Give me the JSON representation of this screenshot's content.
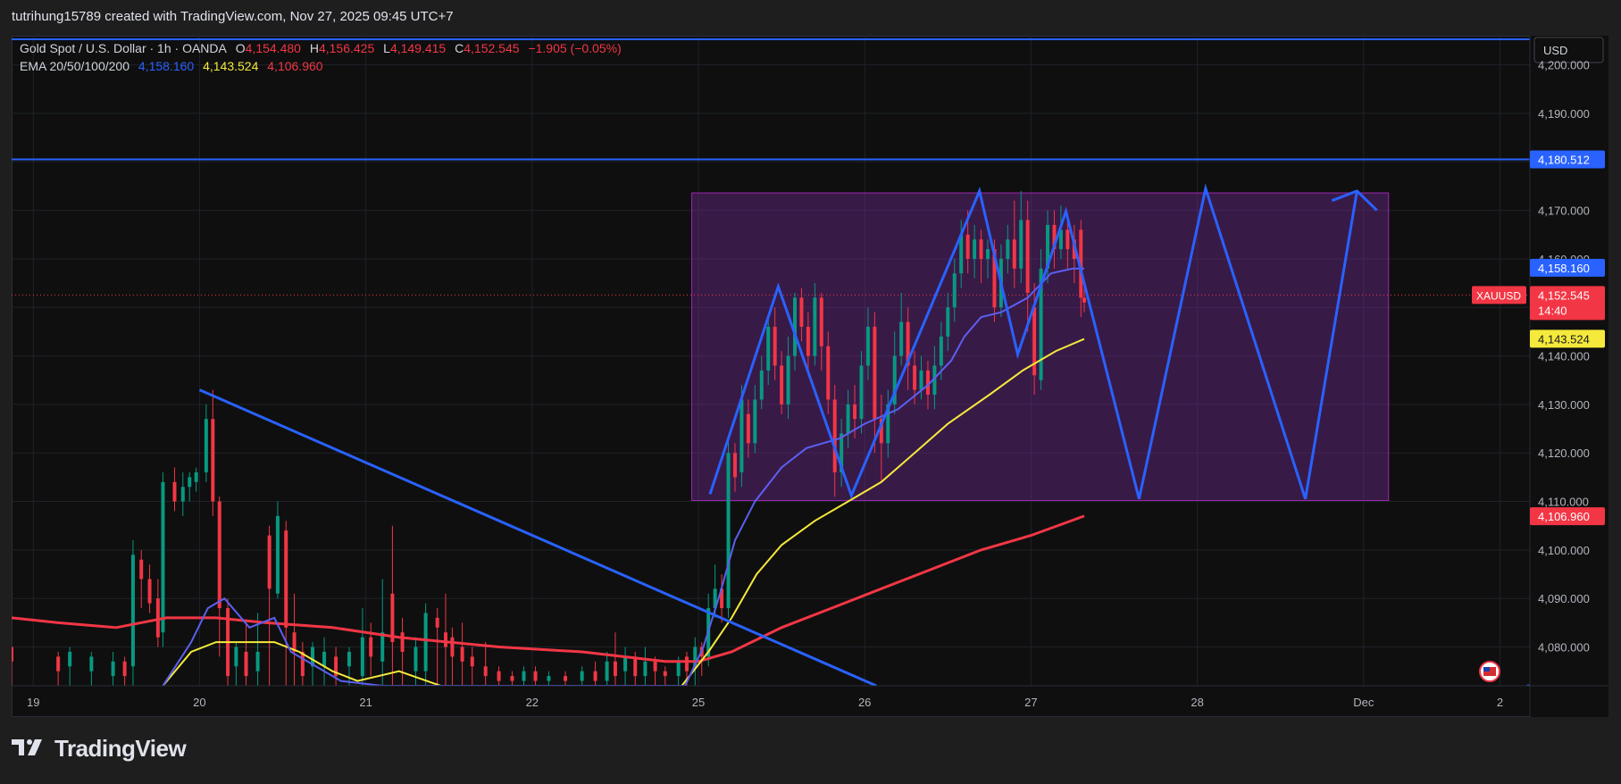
{
  "header": {
    "credit": "tutrihung15789 created with TradingView.com, Nov 27, 2025 09:45 UTC+7"
  },
  "legend": {
    "symbol": "Gold Spot / U.S. Dollar · 1h · OANDA",
    "o_label": "O",
    "o": "4,154.480",
    "h_label": "H",
    "h": "4,156.425",
    "l_label": "L",
    "l": "4,149.415",
    "c_label": "C",
    "c": "4,152.545",
    "change": "−1.905 (−0.05%)",
    "ema_label": "EMA 20/50/100/200",
    "ema20": "4,158.160",
    "ema50": "4,143.524",
    "ema100": "4,106.960"
  },
  "currency": "USD",
  "price_tag": {
    "symbol": "XAUUSD",
    "price": "4,152.545",
    "countdown": "14:40"
  },
  "level_tags": {
    "resistance": "4,180.512",
    "ema20": "4,158.160",
    "ema50": "4,143.524",
    "ema_red": "4,106.960"
  },
  "colors": {
    "background": "#0f0f0f",
    "up": "#089981",
    "down": "#f23645",
    "ema_blue": "#5b5ff0",
    "ema_yellow": "#f5e93b",
    "ema_red": "#f23645",
    "drawing": "#2962ff",
    "range_box": "#7b2ea3"
  },
  "brand": "TradingView",
  "chart_data": {
    "type": "candlestick",
    "timeframe": "1h",
    "y_ticks": [
      "4,200.000",
      "4,190.000",
      "4,180.000",
      "4,170.000",
      "4,160.000",
      "4,150.000",
      "4,140.000",
      "4,130.000",
      "4,120.000",
      "4,110.000",
      "4,100.000",
      "4,090.000",
      "4,080.000"
    ],
    "y_tick_values": [
      4200,
      4190,
      4180,
      4170,
      4160,
      4150,
      4140,
      4130,
      4120,
      4110,
      4100,
      4090,
      4080
    ],
    "ylim": [
      4072,
      4206
    ],
    "x_ticks": [
      "19",
      "20",
      "21",
      "22",
      "25",
      "26",
      "27",
      "28",
      "Dec",
      "2"
    ],
    "x_tick_days": [
      0,
      1,
      2,
      3,
      4,
      5,
      6,
      7,
      8,
      8.82
    ],
    "xlim": [
      -0.13,
      9.0
    ],
    "resistance_level": 4180.512,
    "range_box": {
      "x0": 3.96,
      "x1": 8.15,
      "y0": 4110.2,
      "y1": 4173.6
    },
    "zigzag_projection": [
      [
        4.07,
        4111.5
      ],
      [
        4.48,
        4154.3
      ],
      [
        4.92,
        4111.2
      ],
      [
        5.69,
        4174.0
      ],
      [
        5.92,
        4140.3
      ],
      [
        6.21,
        4169.8
      ],
      [
        6.65,
        4110.5
      ],
      [
        7.05,
        4174.5
      ],
      [
        7.65,
        4110.5
      ],
      [
        7.96,
        4174.0
      ]
    ],
    "arrow_head": [
      [
        7.81,
        4172.0
      ],
      [
        7.96,
        4174.0
      ],
      [
        8.08,
        4170.0
      ]
    ],
    "trendline": [
      [
        1.0,
        4133.0
      ],
      [
        5.07,
        4072.0
      ]
    ],
    "trendline_right": [
      [
        8.98,
        4072.0
      ],
      [
        9.25,
        4073.5
      ]
    ],
    "ema_blue": [
      [
        0.78,
        4072
      ],
      [
        0.95,
        4081
      ],
      [
        1.05,
        4088
      ],
      [
        1.15,
        4090
      ],
      [
        1.3,
        4084
      ],
      [
        1.45,
        4086
      ],
      [
        1.55,
        4079
      ],
      [
        1.7,
        4076
      ],
      [
        1.85,
        4073
      ],
      [
        2.1,
        4072
      ],
      [
        2.5,
        4072
      ],
      [
        3.7,
        4072
      ],
      [
        3.92,
        4072
      ],
      [
        4.03,
        4080
      ],
      [
        4.13,
        4091
      ],
      [
        4.22,
        4102
      ],
      [
        4.34,
        4110
      ],
      [
        4.5,
        4117
      ],
      [
        4.65,
        4121
      ],
      [
        4.85,
        4123
      ],
      [
        5.0,
        4126
      ],
      [
        5.2,
        4129
      ],
      [
        5.38,
        4134
      ],
      [
        5.52,
        4139
      ],
      [
        5.6,
        4144
      ],
      [
        5.7,
        4148
      ],
      [
        5.82,
        4149
      ],
      [
        5.98,
        4152
      ],
      [
        6.12,
        4157
      ],
      [
        6.25,
        4158
      ],
      [
        6.32,
        4158
      ]
    ],
    "ema_yellow": [
      [
        0.78,
        4072
      ],
      [
        0.95,
        4079
      ],
      [
        1.1,
        4081
      ],
      [
        1.3,
        4081
      ],
      [
        1.45,
        4081
      ],
      [
        1.6,
        4079
      ],
      [
        1.8,
        4075
      ],
      [
        1.95,
        4073
      ],
      [
        2.2,
        4075
      ],
      [
        2.45,
        4072
      ],
      [
        3.9,
        4072
      ],
      [
        4.06,
        4079
      ],
      [
        4.2,
        4086
      ],
      [
        4.35,
        4095
      ],
      [
        4.5,
        4101
      ],
      [
        4.7,
        4106
      ],
      [
        4.9,
        4110
      ],
      [
        5.1,
        4114
      ],
      [
        5.3,
        4120
      ],
      [
        5.5,
        4126
      ],
      [
        5.75,
        4132
      ],
      [
        5.95,
        4137
      ],
      [
        6.15,
        4141
      ],
      [
        6.32,
        4143.5
      ]
    ],
    "ema_red": [
      [
        -0.13,
        4086
      ],
      [
        0.15,
        4085
      ],
      [
        0.5,
        4084
      ],
      [
        0.8,
        4086
      ],
      [
        1.1,
        4086
      ],
      [
        1.4,
        4085
      ],
      [
        1.8,
        4084
      ],
      [
        2.2,
        4082
      ],
      [
        2.8,
        4080
      ],
      [
        3.3,
        4079
      ],
      [
        3.8,
        4077
      ],
      [
        4.0,
        4077
      ],
      [
        4.2,
        4079
      ],
      [
        4.5,
        4084
      ],
      [
        4.8,
        4088
      ],
      [
        5.1,
        4092
      ],
      [
        5.4,
        4096
      ],
      [
        5.7,
        4100
      ],
      [
        6.0,
        4103
      ],
      [
        6.32,
        4107
      ]
    ],
    "candles": [
      [
        -0.13,
        4080,
        4077,
        4080,
        4072
      ],
      [
        0.15,
        4078,
        4075,
        4079,
        4072
      ],
      [
        0.22,
        4076,
        4079,
        4080,
        4072
      ],
      [
        0.35,
        4075,
        4078,
        4079,
        4072
      ],
      [
        0.48,
        4074,
        4077,
        4079,
        4072
      ],
      [
        0.55,
        4077,
        4074,
        4078,
        4072
      ],
      [
        0.6,
        4076,
        4099,
        4102,
        4072
      ],
      [
        0.65,
        4098,
        4094,
        4100,
        4088
      ],
      [
        0.7,
        4094,
        4089,
        4097,
        4087
      ],
      [
        0.75,
        4090,
        4082,
        4094,
        4080
      ],
      [
        0.78,
        4083,
        4114,
        4116,
        4080
      ],
      [
        0.85,
        4114,
        4110,
        4117,
        4108
      ],
      [
        0.9,
        4110,
        4113,
        4116,
        4107
      ],
      [
        0.94,
        4113,
        4115,
        4116,
        4110
      ],
      [
        0.98,
        4114,
        4116,
        4117,
        4112
      ],
      [
        1.04,
        4116,
        4127,
        4130,
        4114
      ],
      [
        1.08,
        4127,
        4110,
        4133,
        4107
      ],
      [
        1.12,
        4110,
        4088,
        4111,
        4078
      ],
      [
        1.17,
        4088,
        4074,
        4090,
        4072
      ],
      [
        1.22,
        4076,
        4080,
        4081,
        4072
      ],
      [
        1.28,
        4079,
        4074,
        4085,
        4072
      ],
      [
        1.35,
        4075,
        4079,
        4087,
        4072
      ],
      [
        1.42,
        4103,
        4092,
        4105,
        4072
      ],
      [
        1.47,
        4091,
        4107,
        4110,
        4090
      ],
      [
        1.52,
        4104,
        4084,
        4106,
        4072
      ],
      [
        1.57,
        4083,
        4079,
        4091,
        4072
      ],
      [
        1.62,
        4079,
        4074,
        4081,
        4072
      ],
      [
        1.68,
        4076,
        4080,
        4081,
        4072
      ],
      [
        1.75,
        4076,
        4079,
        4082,
        4072
      ],
      [
        1.82,
        4078,
        4074,
        4080,
        4072
      ],
      [
        1.9,
        4076,
        4079,
        4080,
        4072
      ],
      [
        1.98,
        4074,
        4082,
        4088,
        4072
      ],
      [
        2.03,
        4082,
        4078,
        4085,
        4074
      ],
      [
        2.1,
        4077,
        4083,
        4094,
        4072
      ],
      [
        2.16,
        4091,
        4081,
        4105,
        4072
      ],
      [
        2.22,
        4083,
        4079,
        4086,
        4072
      ],
      [
        2.3,
        4075,
        4080,
        4082,
        4072
      ],
      [
        2.36,
        4075,
        4087,
        4089,
        4072
      ],
      [
        2.43,
        4086,
        4084,
        4088,
        4072
      ],
      [
        2.48,
        4083,
        4080,
        4091,
        4072
      ],
      [
        2.52,
        4082,
        4078,
        4084,
        4072
      ],
      [
        2.58,
        4080,
        4077,
        4085,
        4072
      ],
      [
        2.64,
        4078,
        4076,
        4080,
        4072
      ],
      [
        2.72,
        4076,
        4074,
        4081,
        4072
      ],
      [
        2.8,
        4075,
        4073,
        4076,
        4072
      ],
      [
        2.88,
        4074,
        4073,
        4075,
        4072
      ],
      [
        2.95,
        4073,
        4075,
        4076,
        4072
      ],
      [
        3.02,
        4075,
        4073,
        4076,
        4072
      ],
      [
        3.1,
        4073,
        4074,
        4075,
        4072
      ],
      [
        3.2,
        4074,
        4073,
        4075,
        4072
      ],
      [
        3.3,
        4073,
        4075,
        4076,
        4072
      ],
      [
        3.38,
        4075,
        4073,
        4077,
        4072
      ],
      [
        3.45,
        4073,
        4077,
        4079,
        4072
      ],
      [
        3.5,
        4077,
        4074,
        4083,
        4072
      ],
      [
        3.56,
        4075,
        4078,
        4080,
        4072
      ],
      [
        3.62,
        4078,
        4074,
        4079,
        4072
      ],
      [
        3.68,
        4074,
        4077,
        4080,
        4072
      ],
      [
        3.74,
        4077,
        4075,
        4078,
        4072
      ],
      [
        3.8,
        4075,
        4074,
        4076,
        4072
      ],
      [
        3.88,
        4074,
        4077,
        4078,
        4072
      ],
      [
        3.93,
        4078,
        4075,
        4079,
        4072
      ],
      [
        3.98,
        4076,
        4080,
        4082,
        4072
      ],
      [
        4.02,
        4080,
        4078,
        4081,
        4074
      ],
      [
        4.06,
        4078,
        4088,
        4091,
        4076
      ],
      [
        4.1,
        4088,
        4092,
        4097,
        4086
      ],
      [
        4.14,
        4092,
        4088,
        4095,
        4085
      ],
      [
        4.18,
        4088,
        4120,
        4123,
        4086
      ],
      [
        4.22,
        4120,
        4115,
        4122,
        4112
      ],
      [
        4.26,
        4116,
        4131,
        4134,
        4113
      ],
      [
        4.3,
        4128,
        4122,
        4131,
        4119
      ],
      [
        4.34,
        4122,
        4131,
        4134,
        4120
      ],
      [
        4.38,
        4131,
        4137,
        4140,
        4129
      ],
      [
        4.42,
        4137,
        4146,
        4148,
        4134
      ],
      [
        4.46,
        4146,
        4138,
        4150,
        4135
      ],
      [
        4.5,
        4138,
        4130,
        4141,
        4128
      ],
      [
        4.54,
        4130,
        4140,
        4144,
        4127
      ],
      [
        4.58,
        4140,
        4152,
        4153,
        4137
      ],
      [
        4.62,
        4152,
        4146,
        4154,
        4143
      ],
      [
        4.66,
        4146,
        4140,
        4149,
        4136
      ],
      [
        4.7,
        4140,
        4152,
        4155,
        4138
      ],
      [
        4.74,
        4152,
        4142,
        4153,
        4137
      ],
      [
        4.78,
        4142,
        4131,
        4145,
        4128
      ],
      [
        4.82,
        4131,
        4116,
        4134,
        4111
      ],
      [
        4.86,
        4116,
        4124,
        4127,
        4113
      ],
      [
        4.9,
        4124,
        4130,
        4133,
        4121
      ],
      [
        4.94,
        4130,
        4127,
        4134,
        4123
      ],
      [
        4.98,
        4127,
        4138,
        4141,
        4124
      ],
      [
        5.02,
        4138,
        4146,
        4150,
        4135
      ],
      [
        5.06,
        4146,
        4127,
        4149,
        4120
      ],
      [
        5.1,
        4127,
        4122,
        4132,
        4114
      ],
      [
        5.14,
        4122,
        4130,
        4133,
        4119
      ],
      [
        5.18,
        4130,
        4140,
        4145,
        4128
      ],
      [
        5.22,
        4140,
        4147,
        4153,
        4138
      ],
      [
        5.26,
        4147,
        4138,
        4150,
        4133
      ],
      [
        5.3,
        4138,
        4133,
        4141,
        4130
      ],
      [
        5.34,
        4133,
        4137,
        4140,
        4131
      ],
      [
        5.38,
        4137,
        4132,
        4139,
        4129
      ],
      [
        5.42,
        4132,
        4138,
        4142,
        4129
      ],
      [
        5.46,
        4138,
        4144,
        4147,
        4135
      ],
      [
        5.5,
        4144,
        4150,
        4153,
        4141
      ],
      [
        5.54,
        4150,
        4157,
        4160,
        4147
      ],
      [
        5.58,
        4157,
        4165,
        4168,
        4154
      ],
      [
        5.62,
        4165,
        4160,
        4170,
        4157
      ],
      [
        5.66,
        4160,
        4164,
        4167,
        4156
      ],
      [
        5.7,
        4164,
        4160,
        4166,
        4155
      ],
      [
        5.74,
        4160,
        4162,
        4164,
        4156
      ],
      [
        5.78,
        4162,
        4150,
        4164,
        4147
      ],
      [
        5.82,
        4150,
        4160,
        4163,
        4148
      ],
      [
        5.86,
        4160,
        4164,
        4167,
        4157
      ],
      [
        5.9,
        4164,
        4158,
        4172,
        4154
      ],
      [
        5.94,
        4158,
        4168,
        4174,
        4155
      ],
      [
        5.98,
        4168,
        4153,
        4172,
        4145
      ],
      [
        6.02,
        4150,
        4136,
        4155,
        4132
      ],
      [
        6.06,
        4135,
        4158,
        4162,
        4133
      ],
      [
        6.1,
        4158,
        4167,
        4170,
        4155
      ],
      [
        6.14,
        4167,
        4162,
        4170,
        4158
      ],
      [
        6.18,
        4162,
        4166,
        4171,
        4160
      ],
      [
        6.22,
        4166,
        4162,
        4169,
        4158
      ],
      [
        6.26,
        4164,
        4160,
        4167,
        4155
      ],
      [
        6.3,
        4166,
        4152,
        4168,
        4148
      ],
      [
        6.32,
        4152,
        4151,
        4154,
        4149
      ]
    ]
  }
}
